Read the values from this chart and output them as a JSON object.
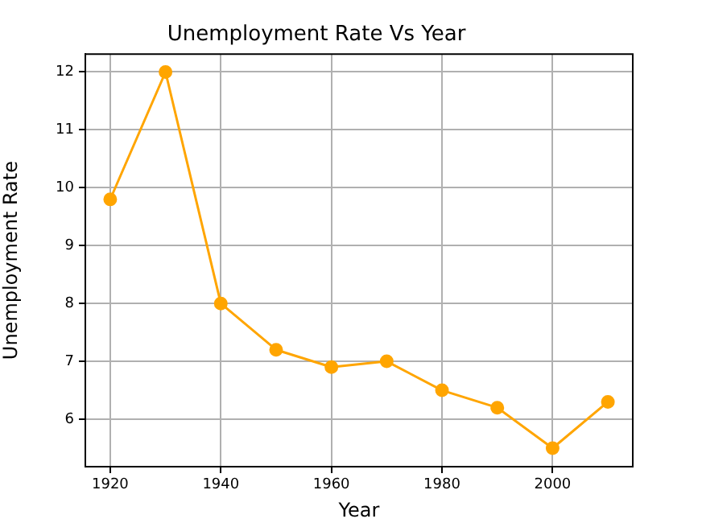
{
  "chart_data": {
    "type": "line",
    "title": "Unemployment Rate Vs Year",
    "xlabel": "Year",
    "ylabel": "Unemployment Rate",
    "x": [
      1920,
      1930,
      1940,
      1950,
      1960,
      1970,
      1980,
      1990,
      2000,
      2010
    ],
    "series": [
      {
        "color": "#ffa500",
        "values": [
          9.8,
          12,
          8,
          7.2,
          6.9,
          7.0,
          6.5,
          6.2,
          5.5,
          6.3
        ]
      }
    ],
    "xlim": [
      1915.5,
      2014.5
    ],
    "xticks": [
      1920,
      1940,
      1960,
      1980,
      2000
    ],
    "ylim": [
      5.18,
      12.31
    ],
    "yticks": [
      6,
      7,
      8,
      9,
      10,
      11,
      12
    ],
    "grid": true,
    "marker": "circle",
    "line_style": "solid",
    "legend": false
  }
}
